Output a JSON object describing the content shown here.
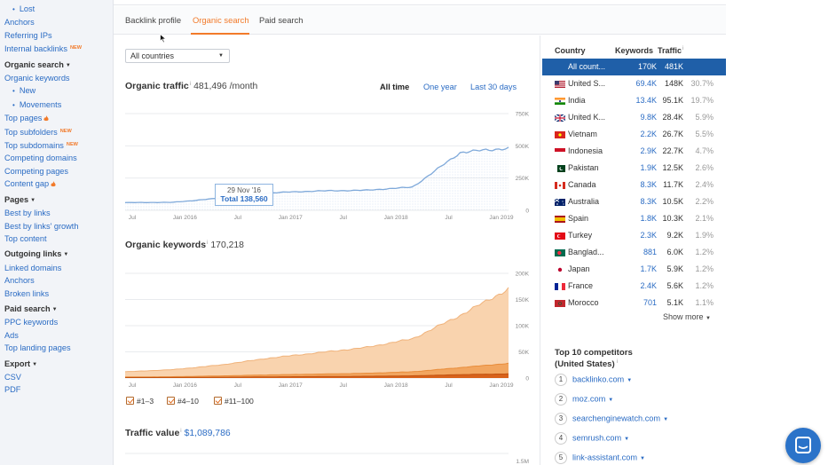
{
  "sidebar": {
    "lost": "Lost",
    "anchors_top": "Anchors",
    "referring_ips": "Referring IPs",
    "internal_backlinks": "Internal backlinks",
    "new_badge": "NEW",
    "organic_search_head": "Organic search",
    "organic_keywords": "Organic keywords",
    "new": "New",
    "movements": "Movements",
    "top_pages": "Top pages",
    "top_subfolders": "Top subfolders",
    "top_subdomains": "Top subdomains",
    "competing_domains": "Competing domains",
    "competing_pages": "Competing pages",
    "content_gap": "Content gap",
    "pages_head": "Pages",
    "best_by_links": "Best by links",
    "best_by_links_growth": "Best by links' growth",
    "top_content": "Top content",
    "outgoing_head": "Outgoing links",
    "linked_domains": "Linked domains",
    "anchors": "Anchors",
    "broken_links": "Broken links",
    "paid_head": "Paid search",
    "ppc_keywords": "PPC keywords",
    "ads": "Ads",
    "top_landing_pages": "Top landing pages",
    "export_head": "Export",
    "csv": "CSV",
    "pdf": "PDF"
  },
  "tabs": [
    "Backlink profile",
    "Organic search",
    "Paid search"
  ],
  "country_select": "All countries",
  "organic_traffic": {
    "title": "Organic traffic",
    "value": "481,496 /month",
    "ranges": [
      "All time",
      "One year",
      "Last 30 days"
    ],
    "tooltip_date": "29 Nov '16",
    "tooltip_total": "Total 138,560",
    "y_ticks": [
      "750K",
      "500K",
      "250K",
      "0"
    ],
    "x_ticks": [
      "Jul",
      "Jan 2016",
      "Jul",
      "Jan 2017",
      "Jul",
      "Jan 2018",
      "Jul",
      "Jan 2019"
    ]
  },
  "organic_keywords": {
    "title": "Organic keywords",
    "value": "170,218",
    "y_ticks": [
      "200K",
      "150K",
      "100K",
      "50K",
      "0"
    ],
    "x_ticks": [
      "Jul",
      "Jan 2016",
      "Jul",
      "Jan 2017",
      "Jul",
      "Jan 2018",
      "Jul",
      "Jan 2019"
    ],
    "legend": [
      "#1–3",
      "#4–10",
      "#11–100"
    ]
  },
  "traffic_value": {
    "title": "Traffic value",
    "value": "$1,089,786",
    "y_tick_top": "1.5M"
  },
  "country_table": {
    "headers": [
      "Country",
      "Keywords",
      "Traffic"
    ],
    "rows": [
      {
        "country": "All count...",
        "keywords": "170K",
        "traffic": "481K",
        "pct": "",
        "flag": "none"
      },
      {
        "country": "United S...",
        "keywords": "69.4K",
        "traffic": "148K",
        "pct": "30.7%",
        "flag": "us"
      },
      {
        "country": "India",
        "keywords": "13.4K",
        "traffic": "95.1K",
        "pct": "19.7%",
        "flag": "in"
      },
      {
        "country": "United K...",
        "keywords": "9.8K",
        "traffic": "28.4K",
        "pct": "5.9%",
        "flag": "uk"
      },
      {
        "country": "Vietnam",
        "keywords": "2.2K",
        "traffic": "26.7K",
        "pct": "5.5%",
        "flag": "vn"
      },
      {
        "country": "Indonesia",
        "keywords": "2.9K",
        "traffic": "22.7K",
        "pct": "4.7%",
        "flag": "id"
      },
      {
        "country": "Pakistan",
        "keywords": "1.9K",
        "traffic": "12.5K",
        "pct": "2.6%",
        "flag": "pk"
      },
      {
        "country": "Canada",
        "keywords": "8.3K",
        "traffic": "11.7K",
        "pct": "2.4%",
        "flag": "ca"
      },
      {
        "country": "Australia",
        "keywords": "8.3K",
        "traffic": "10.5K",
        "pct": "2.2%",
        "flag": "au"
      },
      {
        "country": "Spain",
        "keywords": "1.8K",
        "traffic": "10.3K",
        "pct": "2.1%",
        "flag": "es"
      },
      {
        "country": "Turkey",
        "keywords": "2.3K",
        "traffic": "9.2K",
        "pct": "1.9%",
        "flag": "tr"
      },
      {
        "country": "Banglad...",
        "keywords": "881",
        "traffic": "6.0K",
        "pct": "1.2%",
        "flag": "bd"
      },
      {
        "country": "Japan",
        "keywords": "1.7K",
        "traffic": "5.9K",
        "pct": "1.2%",
        "flag": "jp"
      },
      {
        "country": "France",
        "keywords": "2.4K",
        "traffic": "5.6K",
        "pct": "1.2%",
        "flag": "fr"
      },
      {
        "country": "Morocco",
        "keywords": "701",
        "traffic": "5.1K",
        "pct": "1.1%",
        "flag": "ma"
      }
    ],
    "show_more": "Show more"
  },
  "competitors": {
    "title_line1": "Top 10 competitors",
    "title_line2": "(United States)",
    "items": [
      {
        "rank": "1",
        "domain": "backlinko.com"
      },
      {
        "rank": "2",
        "domain": "moz.com"
      },
      {
        "rank": "3",
        "domain": "searchenginewatch.com"
      },
      {
        "rank": "4",
        "domain": "semrush.com"
      },
      {
        "rank": "5",
        "domain": "link-assistant.com"
      }
    ]
  },
  "colors": {
    "accent": "#f27a2a",
    "link": "#2b6cc4",
    "selected_row": "#1f5fa8",
    "traffic_line": "#7fa9da",
    "kw_11_100": "#f9d3ae",
    "kw_4_10": "#f2a660",
    "kw_1_3": "#d8621b"
  },
  "chart_data": [
    {
      "type": "area",
      "title": "Organic traffic",
      "x": [
        "Jul 2015",
        "Jan 2016",
        "Jul 2016",
        "Jan 2017",
        "Jul 2017",
        "Jan 2018",
        "Jul 2018",
        "Jan 2019",
        "Mar 2019"
      ],
      "series": [
        {
          "values": [
            60000,
            62000,
            95000,
            135000,
            150000,
            155000,
            180000,
            450000,
            481496
          ]
        }
      ],
      "ylim": [
        0,
        750000
      ]
    },
    {
      "type": "area",
      "title": "Organic keywords",
      "x": [
        "Jul 2015",
        "Jan 2016",
        "Jul 2016",
        "Jan 2017",
        "Jul 2017",
        "Jan 2018",
        "Jul 2018",
        "Jan 2019",
        "Mar 2019"
      ],
      "series": [
        {
          "name": "#11–100",
          "values": [
            12000,
            16000,
            25000,
            38000,
            48000,
            58000,
            75000,
            120000,
            170218
          ]
        },
        {
          "name": "#4–10",
          "values": [
            2000,
            2500,
            4000,
            6000,
            7500,
            9000,
            12000,
            20000,
            28000
          ]
        },
        {
          "name": "#1–3",
          "values": [
            800,
            1000,
            1500,
            2200,
            2800,
            3300,
            4200,
            6500,
            8000
          ]
        }
      ],
      "ylim": [
        0,
        200000
      ]
    }
  ]
}
